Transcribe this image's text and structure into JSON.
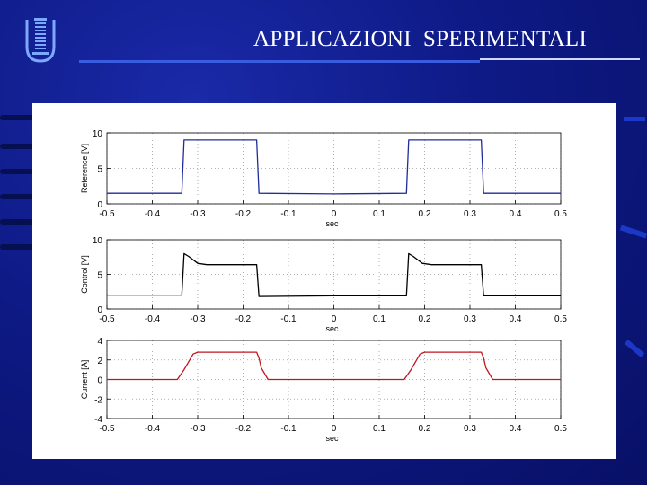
{
  "header": {
    "title": "APPLICAZIONI  SPERIMENTALI"
  },
  "colors": {
    "background": "#0e1a86",
    "title_rule": "#3a5de0",
    "reference_series": "#1f2d9a",
    "control_series": "#000000",
    "current_series": "#c0141e"
  },
  "icons": {
    "logo": "university-logo-icon"
  },
  "chart_data": [
    {
      "type": "line",
      "title": "",
      "xlabel": "sec",
      "ylabel": "Reference  [V]",
      "xlim": [
        -0.5,
        0.5
      ],
      "ylim": [
        0,
        10
      ],
      "xticks": [
        "-0.5",
        "-0.4",
        "-0.3",
        "-0.2",
        "-0.1",
        "0",
        "0.1",
        "0.2",
        "0.3",
        "0.4",
        "0.5"
      ],
      "yticks": [
        "0",
        "5",
        "10"
      ],
      "grid": true,
      "series": [
        {
          "color": "#1f2d9a",
          "x": [
            -0.5,
            -0.335,
            -0.33,
            -0.17,
            -0.165,
            0.0,
            0.16,
            0.165,
            0.325,
            0.33,
            0.5
          ],
          "y": [
            1.5,
            1.5,
            9.0,
            9.0,
            1.5,
            1.4,
            1.5,
            9.0,
            9.0,
            1.5,
            1.5
          ]
        }
      ]
    },
    {
      "type": "line",
      "title": "",
      "xlabel": "sec",
      "ylabel": "Control [V]",
      "xlim": [
        -0.5,
        0.5
      ],
      "ylim": [
        0,
        10
      ],
      "xticks": [
        "-0.5",
        "-0.4",
        "-0.3",
        "-0.2",
        "-0.1",
        "0",
        "0.1",
        "0.2",
        "0.3",
        "0.4",
        "0.5"
      ],
      "yticks": [
        "0",
        "5",
        "10"
      ],
      "grid": true,
      "series": [
        {
          "color": "#000000",
          "x": [
            -0.5,
            -0.335,
            -0.33,
            -0.32,
            -0.3,
            -0.28,
            -0.17,
            -0.165,
            0.0,
            0.16,
            0.165,
            0.175,
            0.195,
            0.215,
            0.325,
            0.33,
            0.5
          ],
          "y": [
            2.0,
            2.0,
            8.0,
            7.6,
            6.6,
            6.4,
            6.4,
            1.8,
            1.9,
            1.9,
            8.0,
            7.6,
            6.6,
            6.4,
            6.4,
            1.9,
            1.9
          ]
        }
      ]
    },
    {
      "type": "line",
      "title": "",
      "xlabel": "sec",
      "ylabel": "Current  [A]",
      "xlim": [
        -0.5,
        0.5
      ],
      "ylim": [
        -4,
        4
      ],
      "xticks": [
        "-0.5",
        "-0.4",
        "-0.3",
        "-0.2",
        "-0.1",
        "0",
        "0.1",
        "0.2",
        "0.3",
        "0.4",
        "0.5"
      ],
      "yticks": [
        "-4",
        "-2",
        "0",
        "2",
        "4"
      ],
      "grid": true,
      "series": [
        {
          "color": "#c0141e",
          "x": [
            -0.5,
            -0.345,
            -0.33,
            -0.31,
            -0.3,
            -0.17,
            -0.165,
            -0.16,
            -0.16,
            -0.145,
            0.0,
            0.155,
            0.17,
            0.19,
            0.2,
            0.325,
            0.33,
            0.335,
            0.335,
            0.35,
            0.5
          ],
          "y": [
            0.0,
            0.0,
            1.0,
            2.6,
            2.8,
            2.8,
            2.2,
            1.2,
            1.2,
            0.0,
            0.0,
            0.0,
            1.0,
            2.6,
            2.8,
            2.8,
            2.2,
            1.2,
            1.2,
            0.0,
            0.0
          ]
        }
      ]
    }
  ]
}
